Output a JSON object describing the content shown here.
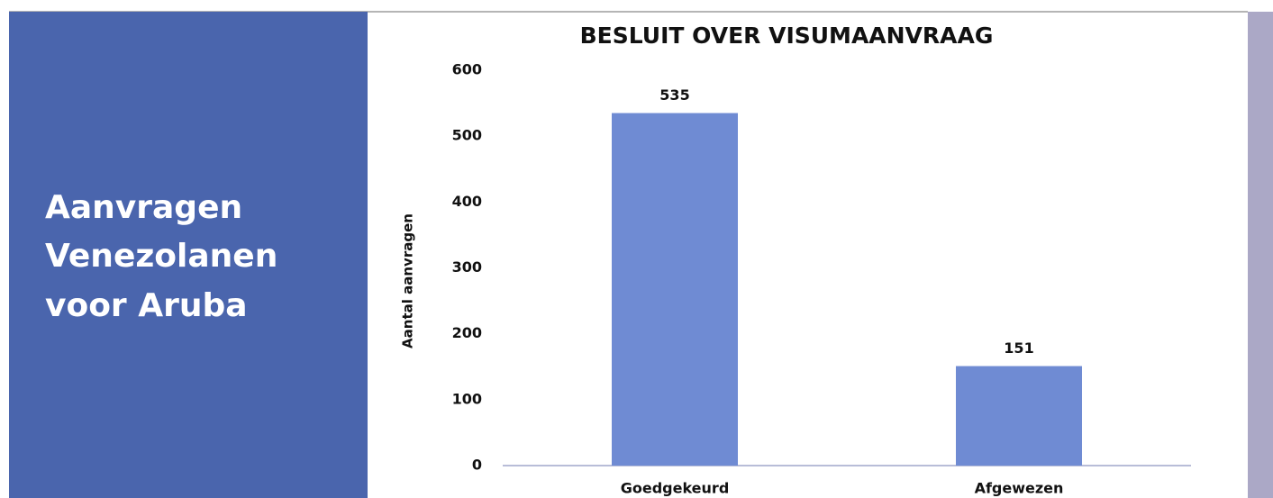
{
  "panel": {
    "lines": [
      "Aanvragen",
      "Venezolanen",
      "voor Aruba"
    ]
  },
  "chart_data": {
    "type": "bar",
    "title": "BESLUIT OVER  VISUMAANVRAAG",
    "y_label": "Aantal aanvragen",
    "categories": [
      "Goedgekeurd",
      "Afgewezen"
    ],
    "values": [
      535,
      151
    ],
    "color": "#6f8bd3",
    "ylim": [
      0,
      600
    ],
    "yticks": [
      0,
      100,
      200,
      300,
      400,
      500,
      600
    ],
    "grid": false
  }
}
